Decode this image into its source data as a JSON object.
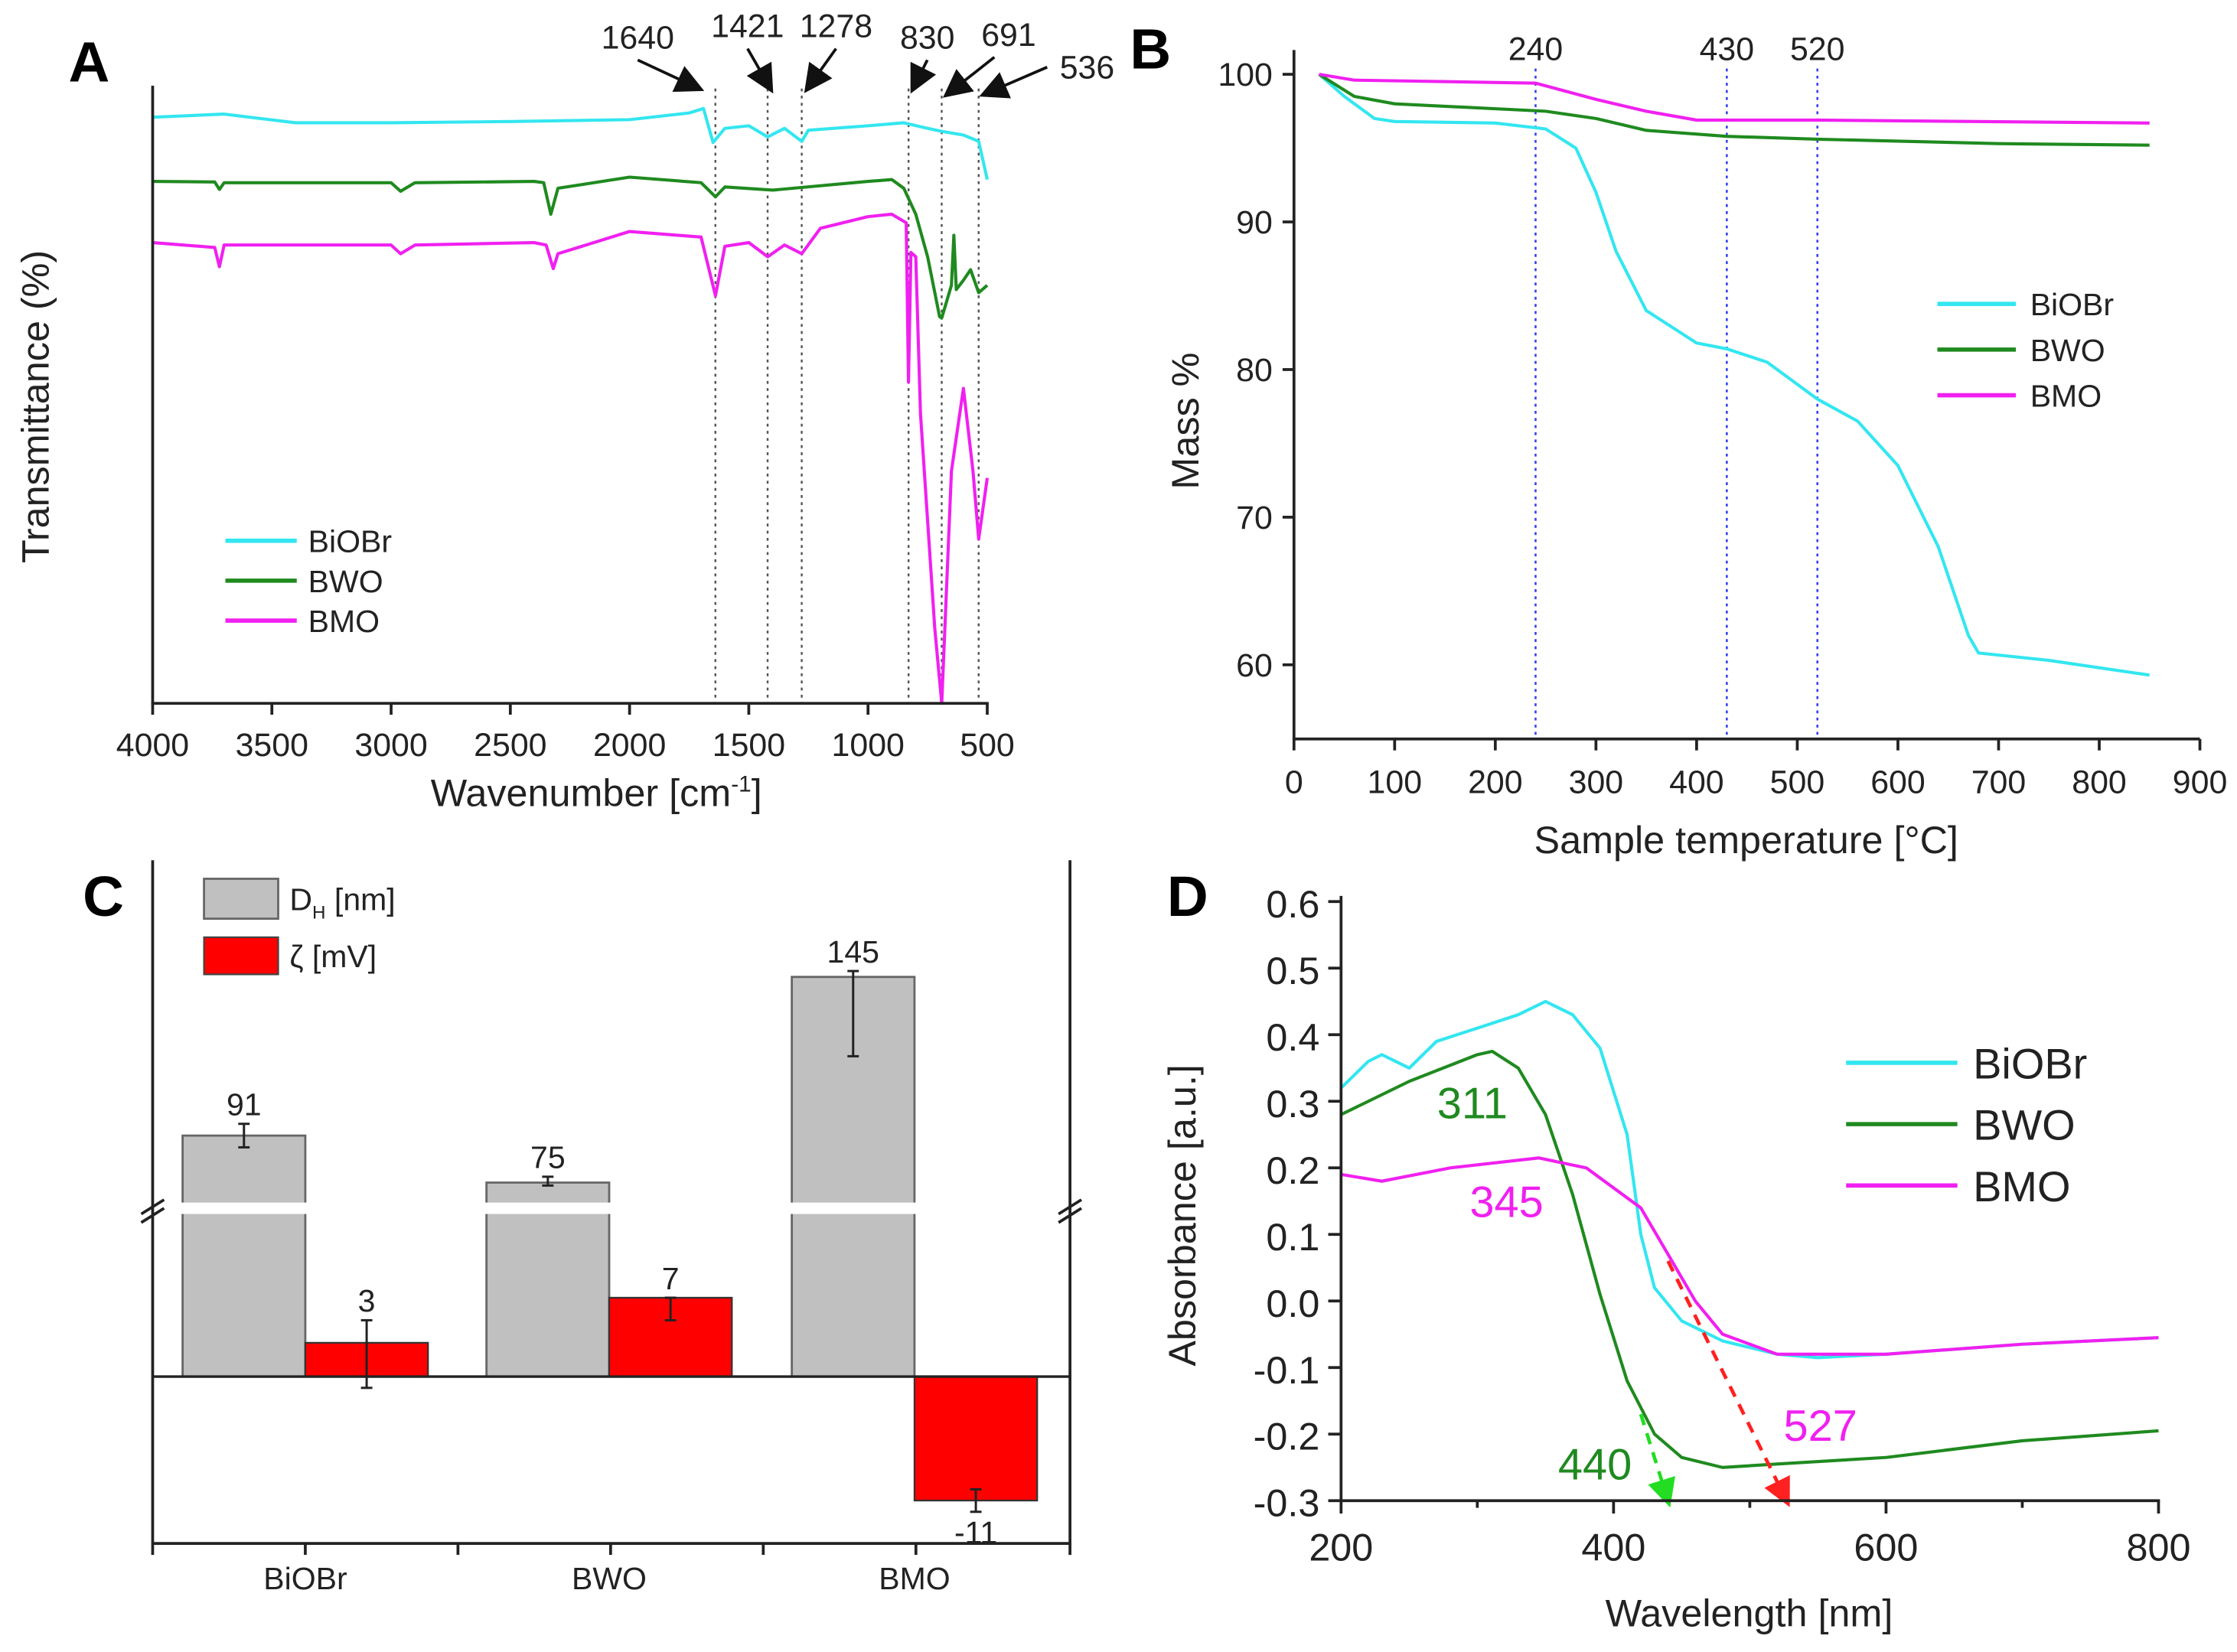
{
  "chart_data": [
    {
      "panel_label": "A",
      "type": "line",
      "xlabel": "Wavenumber [cm",
      "xlabel_sup": "-1",
      "xlabel_end": "]",
      "ylabel": "Transmittance (%)",
      "xlim": [
        4000,
        500
      ],
      "ylim": [
        0,
        100
      ],
      "xticks": [
        4000,
        3500,
        3000,
        2500,
        2000,
        1500,
        1000,
        500
      ],
      "peaks": [
        1640,
        1421,
        1278,
        830,
        691,
        536
      ],
      "legend": "bottom-left",
      "series": [
        {
          "name": "BiOBr",
          "color": "#33e6f0",
          "x": [
            4000,
            3700,
            3400,
            3000,
            2500,
            2000,
            1750,
            1690,
            1650,
            1600,
            1500,
            1421,
            1350,
            1278,
            1250,
            1000,
            850,
            750,
            691,
            600,
            536,
            500
          ],
          "y": [
            94.9,
            95.4,
            94,
            94,
            94.2,
            94.5,
            95.6,
            96.3,
            90.8,
            93.1,
            93.5,
            91.7,
            93.1,
            91,
            92.8,
            93.5,
            94,
            93.1,
            92.6,
            92,
            91,
            84.8
          ]
        },
        {
          "name": "BWO",
          "color": "#1f8a1f",
          "x": [
            4000,
            3740,
            3720,
            3700,
            3000,
            2960,
            2900,
            2400,
            2360,
            2330,
            2300,
            2000,
            1700,
            1640,
            1600,
            1400,
            1000,
            900,
            850,
            800,
            750,
            700,
            691,
            650,
            640,
            630,
            600,
            570,
            536,
            500
          ],
          "y": [
            84.5,
            84.4,
            83.2,
            84.3,
            84.3,
            82.9,
            84.3,
            84.5,
            84.3,
            79.2,
            83.4,
            85.2,
            84.3,
            82,
            83.6,
            83.1,
            84.5,
            84.8,
            83.4,
            79.2,
            72.3,
            62.6,
            62.4,
            67.7,
            75.8,
            67,
            68.5,
            70.2,
            66.5,
            67.7
          ]
        },
        {
          "name": "BMO",
          "color": "#f020f0",
          "x": [
            4000,
            3740,
            3720,
            3700,
            3000,
            2960,
            2900,
            2400,
            2350,
            2320,
            2300,
            2000,
            1700,
            1640,
            1600,
            1500,
            1421,
            1350,
            1278,
            1200,
            1000,
            900,
            840,
            830,
            820,
            800,
            780,
            720,
            691,
            650,
            600,
            560,
            536,
            500
          ],
          "y": [
            74.6,
            73.8,
            70.7,
            74.2,
            74.2,
            72.8,
            74.2,
            74.6,
            74.2,
            70.4,
            72.8,
            76.4,
            75.5,
            66,
            74,
            74.6,
            72.3,
            74.2,
            72.8,
            76.9,
            78.8,
            79.2,
            77.8,
            52,
            73,
            72.3,
            46.9,
            12.2,
            0,
            37.6,
            51,
            37.6,
            26.6,
            36.5
          ]
        }
      ]
    },
    {
      "panel_label": "B",
      "type": "line",
      "xlabel": "Sample temperature [°C]",
      "ylabel": "Mass %",
      "xlim": [
        0,
        900
      ],
      "ylim": [
        55,
        101
      ],
      "xticks": [
        0,
        100,
        200,
        300,
        400,
        500,
        600,
        700,
        800,
        900
      ],
      "yticks": [
        60,
        70,
        80,
        90,
        100
      ],
      "markers": [
        240,
        430,
        520
      ],
      "legend": "center-right",
      "series": [
        {
          "name": "BiOBr",
          "color": "#33e6f0",
          "x": [
            25,
            50,
            80,
            100,
            200,
            250,
            280,
            300,
            320,
            350,
            400,
            430,
            470,
            520,
            560,
            600,
            640,
            670,
            680,
            750,
            850
          ],
          "y": [
            100,
            98.5,
            97,
            96.8,
            96.7,
            96.3,
            95,
            92,
            88,
            84,
            81.8,
            81.4,
            80.5,
            78,
            76.5,
            73.5,
            68,
            62,
            60.8,
            60.3,
            59.3
          ]
        },
        {
          "name": "BWO",
          "color": "#1f8a1f",
          "x": [
            25,
            60,
            100,
            250,
            300,
            350,
            430,
            520,
            700,
            850
          ],
          "y": [
            100,
            98.5,
            98,
            97.5,
            97,
            96.2,
            95.8,
            95.6,
            95.3,
            95.2
          ]
        },
        {
          "name": "BMO",
          "color": "#f020f0",
          "x": [
            25,
            60,
            240,
            300,
            350,
            400,
            520,
            850
          ],
          "y": [
            100,
            99.6,
            99.4,
            98.3,
            97.5,
            96.9,
            96.9,
            96.7
          ]
        }
      ]
    },
    {
      "panel_label": "C",
      "type": "bar",
      "categories": [
        "BiOBr",
        "BWO",
        "BMO"
      ],
      "legend": "top-left",
      "series": [
        {
          "name": "D",
          "name_sub": "H",
          "name_end": " [nm]",
          "color": "#c0c0c0",
          "values": [
            91,
            75,
            145
          ],
          "errors": [
            [
              87,
              95
            ],
            [
              74,
              77
            ],
            [
              118,
              147
            ]
          ]
        },
        {
          "name": "ζ [mV]",
          "color": "#ff0000",
          "values": [
            3,
            7,
            -11
          ],
          "errors": [
            [
              -1,
              5
            ],
            [
              5,
              7
            ],
            [
              -12,
              -10
            ]
          ]
        }
      ],
      "axis_break": true
    },
    {
      "panel_label": "D",
      "type": "line",
      "xlabel": "Wavelength [nm]",
      "ylabel": "Absorbance [a.u.]",
      "xlim": [
        200,
        800
      ],
      "ylim": [
        -0.3,
        0.6
      ],
      "xticks": [
        200,
        400,
        600,
        800
      ],
      "yticks": [
        "-0.3",
        "-0.2",
        "-0.1",
        "0.0",
        "0.1",
        "0.2",
        "0.3",
        "0.4",
        "0.5",
        "0.6"
      ],
      "legend": "top-right",
      "annotations": [
        {
          "text": "311",
          "color": "#1f8a1f"
        },
        {
          "text": "345",
          "color": "#f020f0"
        },
        {
          "text": "440",
          "color": "#1f8a1f"
        },
        {
          "text": "527",
          "color": "#f020f0"
        }
      ],
      "tangents": [
        {
          "color": "#22dd22",
          "x": [
            420,
            440
          ],
          "y": [
            -0.17,
            -0.3
          ]
        },
        {
          "color": "#ff2020",
          "x": [
            440,
            527
          ],
          "y": [
            0.06,
            -0.3
          ]
        }
      ],
      "series": [
        {
          "name": "BiOBr",
          "color": "#33e6f0",
          "x": [
            200,
            220,
            230,
            250,
            270,
            300,
            330,
            350,
            370,
            390,
            410,
            420,
            430,
            450,
            480,
            520,
            550,
            600,
            700,
            800
          ],
          "y": [
            0.32,
            0.36,
            0.37,
            0.35,
            0.39,
            0.41,
            0.43,
            0.45,
            0.43,
            0.38,
            0.25,
            0.1,
            0.02,
            -0.03,
            -0.06,
            -0.08,
            -0.085,
            -0.08,
            -0.065,
            -0.055
          ]
        },
        {
          "name": "BWO",
          "color": "#1f8a1f",
          "x": [
            200,
            250,
            300,
            311,
            330,
            350,
            370,
            390,
            410,
            430,
            450,
            480,
            520,
            600,
            700,
            800
          ],
          "y": [
            0.28,
            0.33,
            0.37,
            0.375,
            0.35,
            0.28,
            0.16,
            0.01,
            -0.12,
            -0.2,
            -0.235,
            -0.25,
            -0.245,
            -0.235,
            -0.21,
            -0.195
          ]
        },
        {
          "name": "BMO",
          "color": "#f020f0",
          "x": [
            200,
            230,
            280,
            345,
            380,
            420,
            440,
            460,
            480,
            520,
            600,
            700,
            800
          ],
          "y": [
            0.19,
            0.18,
            0.2,
            0.215,
            0.2,
            0.14,
            0.07,
            0,
            -0.05,
            -0.08,
            -0.08,
            -0.065,
            -0.055
          ]
        }
      ]
    }
  ]
}
